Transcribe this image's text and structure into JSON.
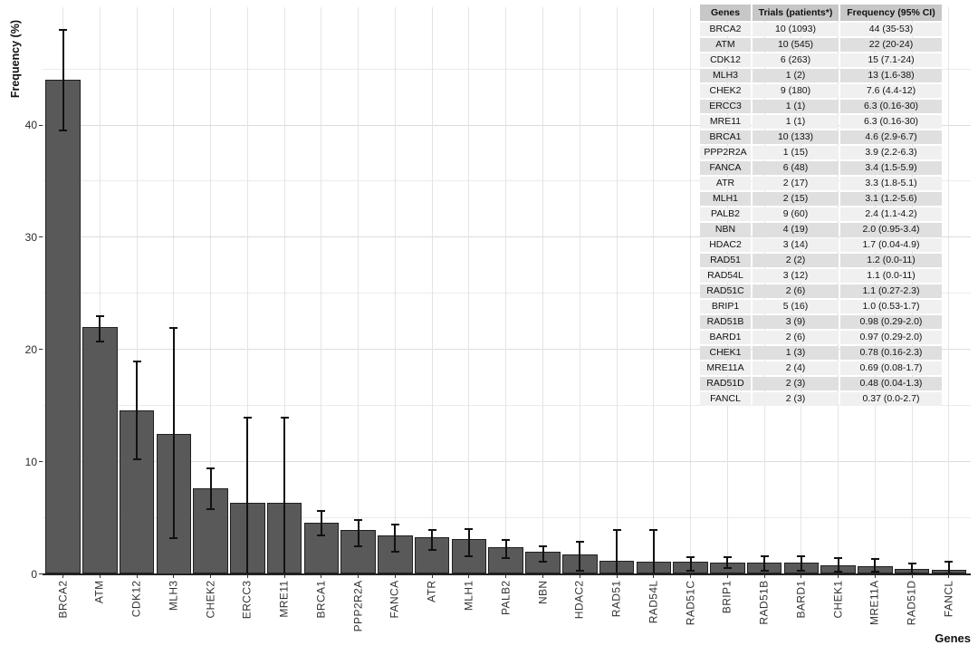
{
  "figure": {
    "background": "#ffffff",
    "bar_color": "#595959",
    "bar_border_color": "#1f1f1f",
    "error_bar_color": "#111111",
    "major_grid_color": "#dcdcdc",
    "minor_grid_color": "#ebebeb"
  },
  "y_axis": {
    "title": "Frequency (%)",
    "tick_labels": [
      "0",
      "10",
      "20",
      "30",
      "40"
    ],
    "tick_values": [
      0,
      10,
      20,
      30,
      40
    ],
    "minor_tick_values": [
      5,
      15,
      25,
      35,
      45
    ]
  },
  "x_axis": {
    "title": "Genes"
  },
  "chart_data": {
    "type": "bar",
    "title": "",
    "xlabel": "Genes",
    "ylabel": "Frequency (%)",
    "ylim": [
      0,
      50
    ],
    "grid": "on",
    "legend": "none",
    "categories": [
      "BRCA2",
      "ATM",
      "CDK12",
      "MLH3",
      "CHEK2",
      "ERCC3",
      "MRE11",
      "BRCA1",
      "PPP2R2A",
      "FANCA",
      "ATR",
      "MLH1",
      "PALB2",
      "NBN",
      "HDAC2",
      "RAD51",
      "RAD54L",
      "RAD51C",
      "BRIP1",
      "RAD51B",
      "BARD1",
      "CHEK1",
      "MRE11A",
      "RAD51D",
      "FANCL"
    ],
    "values": [
      44,
      22,
      14.6,
      12.5,
      7.6,
      6.3,
      6.3,
      4.6,
      3.9,
      3.4,
      3.3,
      3.1,
      2.4,
      2.0,
      1.7,
      1.2,
      1.1,
      1.1,
      1.0,
      0.98,
      0.97,
      0.78,
      0.69,
      0.48,
      0.37
    ],
    "error_low": [
      39.5,
      20.7,
      10.2,
      3.2,
      5.8,
      0,
      0,
      3.4,
      2.5,
      2.0,
      2.1,
      1.6,
      1.4,
      1.1,
      0.3,
      0,
      0,
      0.3,
      0.5,
      0.3,
      0.3,
      0.2,
      0.2,
      0.05,
      0.05
    ],
    "error_high": [
      48.5,
      23.0,
      18.9,
      21.9,
      9.4,
      13.9,
      13.9,
      5.6,
      4.8,
      4.4,
      3.9,
      4.0,
      3.0,
      2.5,
      2.9,
      3.9,
      3.9,
      1.5,
      1.5,
      1.6,
      1.6,
      1.4,
      1.3,
      0.9,
      1.05
    ]
  },
  "table": {
    "headers": [
      "Genes",
      "Trials (patients*)",
      "Frequency (95% CI)"
    ],
    "rows": [
      [
        "BRCA2",
        "10 (1093)",
        "44 (35-53)"
      ],
      [
        "ATM",
        "10 (545)",
        "22 (20-24)"
      ],
      [
        "CDK12",
        "6 (263)",
        "15 (7.1-24)"
      ],
      [
        "MLH3",
        "1 (2)",
        "13 (1.6-38)"
      ],
      [
        "CHEK2",
        "9 (180)",
        "7.6 (4.4-12)"
      ],
      [
        "ERCC3",
        "1 (1)",
        "6.3 (0.16-30)"
      ],
      [
        "MRE11",
        "1 (1)",
        "6.3 (0.16-30)"
      ],
      [
        "BRCA1",
        "10 (133)",
        "4.6 (2.9-6.7)"
      ],
      [
        "PPP2R2A",
        "1 (15)",
        "3.9 (2.2-6.3)"
      ],
      [
        "FANCA",
        "6 (48)",
        "3.4 (1.5-5.9)"
      ],
      [
        "ATR",
        "2 (17)",
        "3.3 (1.8-5.1)"
      ],
      [
        "MLH1",
        "2 (15)",
        "3.1 (1.2-5.6)"
      ],
      [
        "PALB2",
        "9 (60)",
        "2.4 (1.1-4.2)"
      ],
      [
        "NBN",
        "4 (19)",
        "2.0 (0.95-3.4)"
      ],
      [
        "HDAC2",
        "3 (14)",
        "1.7 (0.04-4.9)"
      ],
      [
        "RAD51",
        "2 (2)",
        "1.2 (0.0-11)"
      ],
      [
        "RAD54L",
        "3 (12)",
        "1.1 (0.0-11)"
      ],
      [
        "RAD51C",
        "2 (6)",
        "1.1 (0.27-2.3)"
      ],
      [
        "BRIP1",
        "5 (16)",
        "1.0 (0.53-1.7)"
      ],
      [
        "RAD51B",
        "3 (9)",
        "0.98 (0.29-2.0)"
      ],
      [
        "BARD1",
        "2 (6)",
        "0.97 (0.29-2.0)"
      ],
      [
        "CHEK1",
        "1 (3)",
        "0.78 (0.16-2.3)"
      ],
      [
        "MRE11A",
        "2 (4)",
        "0.69 (0.08-1.7)"
      ],
      [
        "RAD51D",
        "2 (3)",
        "0.48 (0.04-1.3)"
      ],
      [
        "FANCL",
        "2 (3)",
        "0.37 (0.0-2.7)"
      ]
    ]
  }
}
